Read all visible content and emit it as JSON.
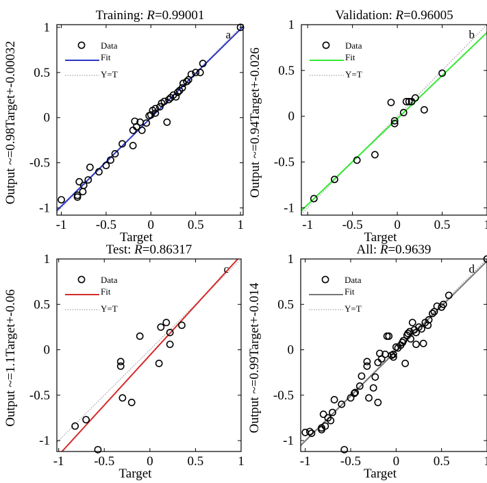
{
  "colors": {
    "axis": "#000000",
    "marker": "#000000",
    "identity": "#8a8a8a",
    "fit_training": "#2b35c7",
    "fit_validation": "#33e833",
    "fit_test": "#d42a2a",
    "fit_all": "#777777"
  },
  "legend": {
    "data": "Data",
    "fit": "Fit",
    "identity": "Y=T"
  },
  "chart_data": [
    {
      "type": "scatter",
      "panel_letter": "a",
      "title_prefix": "Training: ",
      "title_r": "R",
      "title_value": "=0.99001",
      "xlabel": "Target",
      "ylabel": "Output ~=0.98Target+-0.00032",
      "xlim": [
        -1.05,
        1.03
      ],
      "ylim": [
        -1.08,
        1.03
      ],
      "xticks": [
        -1,
        -0.5,
        0,
        0.5,
        1
      ],
      "yticks": [
        -1,
        -0.5,
        0,
        0.5,
        1
      ],
      "fit": {
        "slope": 0.98,
        "intercept": -0.00032,
        "color_key": "fit_training"
      },
      "points": [
        [
          -1.0,
          -0.91
        ],
        [
          -0.82,
          -0.86
        ],
        [
          -0.82,
          -0.88
        ],
        [
          -0.8,
          -0.71
        ],
        [
          -0.76,
          -0.82
        ],
        [
          -0.75,
          -0.75
        ],
        [
          -0.7,
          -0.69
        ],
        [
          -0.68,
          -0.55
        ],
        [
          -0.58,
          -0.6
        ],
        [
          -0.5,
          -0.53
        ],
        [
          -0.45,
          -0.47
        ],
        [
          -0.4,
          -0.4
        ],
        [
          -0.32,
          -0.29
        ],
        [
          -0.2,
          -0.31
        ],
        [
          -0.2,
          -0.14
        ],
        [
          -0.18,
          -0.04
        ],
        [
          -0.16,
          -0.1
        ],
        [
          -0.12,
          -0.05
        ],
        [
          -0.1,
          -0.14
        ],
        [
          -0.05,
          -0.06
        ],
        [
          -0.02,
          0.02
        ],
        [
          0.0,
          0.03
        ],
        [
          0.02,
          0.08
        ],
        [
          0.05,
          0.05
        ],
        [
          0.05,
          0.1
        ],
        [
          0.1,
          0.12
        ],
        [
          0.12,
          0.16
        ],
        [
          0.15,
          0.18
        ],
        [
          0.18,
          -0.05
        ],
        [
          0.2,
          0.2
        ],
        [
          0.22,
          0.22
        ],
        [
          0.25,
          0.25
        ],
        [
          0.28,
          0.23
        ],
        [
          0.3,
          0.28
        ],
        [
          0.32,
          0.3
        ],
        [
          0.35,
          0.33
        ],
        [
          0.36,
          0.38
        ],
        [
          0.4,
          0.4
        ],
        [
          0.42,
          0.42
        ],
        [
          0.45,
          0.48
        ],
        [
          0.5,
          0.5
        ],
        [
          0.55,
          0.5
        ],
        [
          0.58,
          0.6
        ],
        [
          1.0,
          1.0
        ]
      ]
    },
    {
      "type": "scatter",
      "panel_letter": "b",
      "title_prefix": "Validation: ",
      "title_r": "R",
      "title_value": "=0.96005",
      "xlabel": "Target",
      "ylabel": "Output ~=0.94Target+-0.026",
      "xlim": [
        -1.07,
        1.0
      ],
      "ylim": [
        -1.08,
        1.0
      ],
      "xticks": [
        -1,
        -0.5,
        0,
        0.5,
        1
      ],
      "yticks": [
        -1,
        -0.5,
        0,
        0.5,
        1
      ],
      "fit": {
        "slope": 0.94,
        "intercept": -0.026,
        "color_key": "fit_validation"
      },
      "points": [
        [
          -0.93,
          -0.9
        ],
        [
          -0.7,
          -0.69
        ],
        [
          -0.45,
          -0.48
        ],
        [
          -0.25,
          -0.42
        ],
        [
          -0.07,
          0.15
        ],
        [
          -0.03,
          -0.05
        ],
        [
          -0.03,
          -0.08
        ],
        [
          0.07,
          0.04
        ],
        [
          0.1,
          0.16
        ],
        [
          0.13,
          0.16
        ],
        [
          0.16,
          0.16
        ],
        [
          0.2,
          0.2
        ],
        [
          0.3,
          0.07
        ],
        [
          0.5,
          0.47
        ]
      ]
    },
    {
      "type": "scatter",
      "panel_letter": "c",
      "title_prefix": "Test: ",
      "title_r": "R",
      "title_value": "=0.86317",
      "xlabel": "Target",
      "ylabel": "Output ~=1.1Target+-0.06",
      "xlim": [
        -1.02,
        1.0
      ],
      "ylim": [
        -1.12,
        1.0
      ],
      "xticks": [
        -1,
        -0.5,
        0,
        0.5,
        1
      ],
      "yticks": [
        -1,
        -0.5,
        0,
        0.5,
        1
      ],
      "fit": {
        "slope": 1.1,
        "intercept": -0.06,
        "color_key": "fit_test"
      },
      "points": [
        [
          -0.82,
          -0.84
        ],
        [
          -0.7,
          -0.77
        ],
        [
          -0.57,
          -1.1
        ],
        [
          -0.32,
          -0.13
        ],
        [
          -0.32,
          -0.18
        ],
        [
          -0.3,
          -0.53
        ],
        [
          -0.2,
          -0.58
        ],
        [
          -0.11,
          0.15
        ],
        [
          0.1,
          -0.15
        ],
        [
          0.12,
          0.25
        ],
        [
          0.18,
          0.3
        ],
        [
          0.22,
          0.06
        ],
        [
          0.22,
          0.19
        ],
        [
          0.35,
          0.27
        ]
      ]
    },
    {
      "type": "scatter",
      "panel_letter": "d",
      "title_prefix": "All: ",
      "title_r": "R",
      "title_value": "=0.9639",
      "xlabel": "Target",
      "ylabel": "Output ~=0.99Target+-0.014",
      "xlim": [
        -1.05,
        1.0
      ],
      "ylim": [
        -1.12,
        1.0
      ],
      "xticks": [
        -1,
        -0.5,
        0,
        0.5,
        1
      ],
      "yticks": [
        -1,
        -0.5,
        0,
        0.5,
        1
      ],
      "fit": {
        "slope": 0.99,
        "intercept": -0.014,
        "color_key": "fit_all"
      },
      "points": [
        [
          -1.0,
          -0.91
        ],
        [
          -0.95,
          -0.9
        ],
        [
          -0.93,
          -0.92
        ],
        [
          -0.82,
          -0.86
        ],
        [
          -0.82,
          -0.88
        ],
        [
          -0.8,
          -0.71
        ],
        [
          -0.78,
          -0.84
        ],
        [
          -0.75,
          -0.75
        ],
        [
          -0.72,
          -0.78
        ],
        [
          -0.7,
          -0.69
        ],
        [
          -0.68,
          -0.55
        ],
        [
          -0.6,
          -0.6
        ],
        [
          -0.57,
          -1.1
        ],
        [
          -0.5,
          -0.53
        ],
        [
          -0.46,
          -0.48
        ],
        [
          -0.45,
          -0.47
        ],
        [
          -0.4,
          -0.4
        ],
        [
          -0.38,
          -0.29
        ],
        [
          -0.32,
          -0.13
        ],
        [
          -0.32,
          -0.18
        ],
        [
          -0.3,
          -0.53
        ],
        [
          -0.25,
          -0.42
        ],
        [
          -0.23,
          -0.3
        ],
        [
          -0.2,
          -0.58
        ],
        [
          -0.2,
          -0.14
        ],
        [
          -0.18,
          -0.04
        ],
        [
          -0.16,
          -0.1
        ],
        [
          -0.12,
          -0.05
        ],
        [
          -0.1,
          0.15
        ],
        [
          -0.08,
          0.15
        ],
        [
          -0.05,
          -0.06
        ],
        [
          -0.03,
          -0.05
        ],
        [
          -0.03,
          -0.08
        ],
        [
          0.0,
          0.03
        ],
        [
          0.02,
          0.02
        ],
        [
          0.05,
          0.05
        ],
        [
          0.07,
          0.08
        ],
        [
          0.08,
          0.1
        ],
        [
          0.1,
          -0.15
        ],
        [
          0.12,
          0.16
        ],
        [
          0.13,
          0.18
        ],
        [
          0.15,
          0.2
        ],
        [
          0.16,
          0.12
        ],
        [
          0.18,
          0.3
        ],
        [
          0.2,
          0.22
        ],
        [
          0.22,
          0.06
        ],
        [
          0.22,
          0.19
        ],
        [
          0.25,
          0.25
        ],
        [
          0.28,
          0.23
        ],
        [
          0.3,
          0.07
        ],
        [
          0.32,
          0.3
        ],
        [
          0.35,
          0.27
        ],
        [
          0.36,
          0.33
        ],
        [
          0.4,
          0.4
        ],
        [
          0.42,
          0.42
        ],
        [
          0.45,
          0.48
        ],
        [
          0.5,
          0.47
        ],
        [
          0.52,
          0.5
        ],
        [
          0.58,
          0.6
        ],
        [
          1.0,
          1.0
        ]
      ]
    }
  ]
}
